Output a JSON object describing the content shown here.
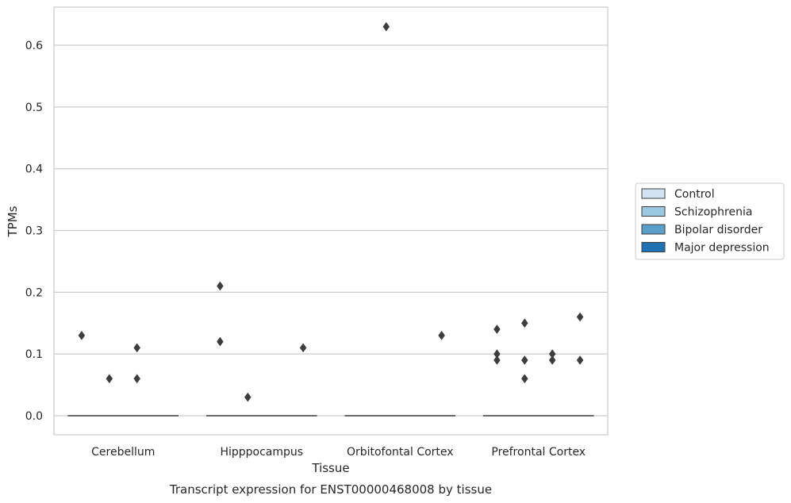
{
  "chart_data": {
    "type": "boxplot",
    "title": "",
    "caption": "Transcript expression for ENST00000468008 by tissue",
    "xlabel": "Tissue",
    "ylabel": "TPMs",
    "ylim": [
      -0.031,
      0.66
    ],
    "yticks": [
      0.0,
      0.1,
      0.2,
      0.3,
      0.4,
      0.5,
      0.6
    ],
    "ytick_labels": [
      "0.0",
      "0.1",
      "0.2",
      "0.3",
      "0.4",
      "0.5",
      "0.6"
    ],
    "grid": "horizontal",
    "legend_position": "right",
    "categories": [
      "Cerebellum",
      "Hipppocampus",
      "Orbitofontal Cortex",
      "Prefrontal Cortex"
    ],
    "series": [
      {
        "name": "Control",
        "color": "#d2e3f3",
        "box": [
          {
            "q1": 0,
            "median": 0,
            "q3": 0,
            "whisker_low": 0,
            "whisker_high": 0
          },
          {
            "q1": 0,
            "median": 0,
            "q3": 0,
            "whisker_low": 0,
            "whisker_high": 0
          },
          {
            "q1": 0,
            "median": 0,
            "q3": 0,
            "whisker_low": 0,
            "whisker_high": 0
          },
          {
            "q1": 0,
            "median": 0,
            "q3": 0,
            "whisker_low": 0,
            "whisker_high": 0
          }
        ],
        "outliers": [
          [
            0.13
          ],
          [
            0.21,
            0.12
          ],
          [],
          [
            0.14,
            0.1,
            0.09
          ]
        ]
      },
      {
        "name": "Schizophrenia",
        "color": "#9ac8e0",
        "box": [
          {
            "q1": 0,
            "median": 0,
            "q3": 0,
            "whisker_low": 0,
            "whisker_high": 0
          },
          {
            "q1": 0,
            "median": 0,
            "q3": 0,
            "whisker_low": 0,
            "whisker_high": 0
          },
          {
            "q1": 0,
            "median": 0,
            "q3": 0,
            "whisker_low": 0,
            "whisker_high": 0
          },
          {
            "q1": 0,
            "median": 0,
            "q3": 0,
            "whisker_low": 0,
            "whisker_high": 0
          }
        ],
        "outliers": [
          [
            0.06
          ],
          [
            0.03
          ],
          [
            0.63
          ],
          [
            0.15,
            0.09,
            0.06
          ]
        ]
      },
      {
        "name": "Bipolar disorder",
        "color": "#5a9ec9",
        "box": [
          {
            "q1": 0,
            "median": 0,
            "q3": 0,
            "whisker_low": 0,
            "whisker_high": 0
          },
          {
            "q1": 0,
            "median": 0,
            "q3": 0,
            "whisker_low": 0,
            "whisker_high": 0
          },
          {
            "q1": 0,
            "median": 0,
            "q3": 0,
            "whisker_low": 0,
            "whisker_high": 0
          },
          {
            "q1": 0,
            "median": 0,
            "q3": 0,
            "whisker_low": 0,
            "whisker_high": 0
          }
        ],
        "outliers": [
          [
            0.11,
            0.06
          ],
          [],
          [],
          [
            0.1,
            0.09
          ]
        ]
      },
      {
        "name": "Major depression",
        "color": "#2070b4",
        "box": [
          {
            "q1": 0,
            "median": 0,
            "q3": 0,
            "whisker_low": 0,
            "whisker_high": 0
          },
          {
            "q1": 0,
            "median": 0,
            "q3": 0,
            "whisker_low": 0,
            "whisker_high": 0
          },
          {
            "q1": 0,
            "median": 0,
            "q3": 0,
            "whisker_low": 0,
            "whisker_high": 0
          },
          {
            "q1": 0,
            "median": 0,
            "q3": 0,
            "whisker_low": 0,
            "whisker_high": 0
          }
        ],
        "outliers": [
          [],
          [
            0.11
          ],
          [
            0.13
          ],
          [
            0.16,
            0.09
          ]
        ]
      }
    ]
  }
}
